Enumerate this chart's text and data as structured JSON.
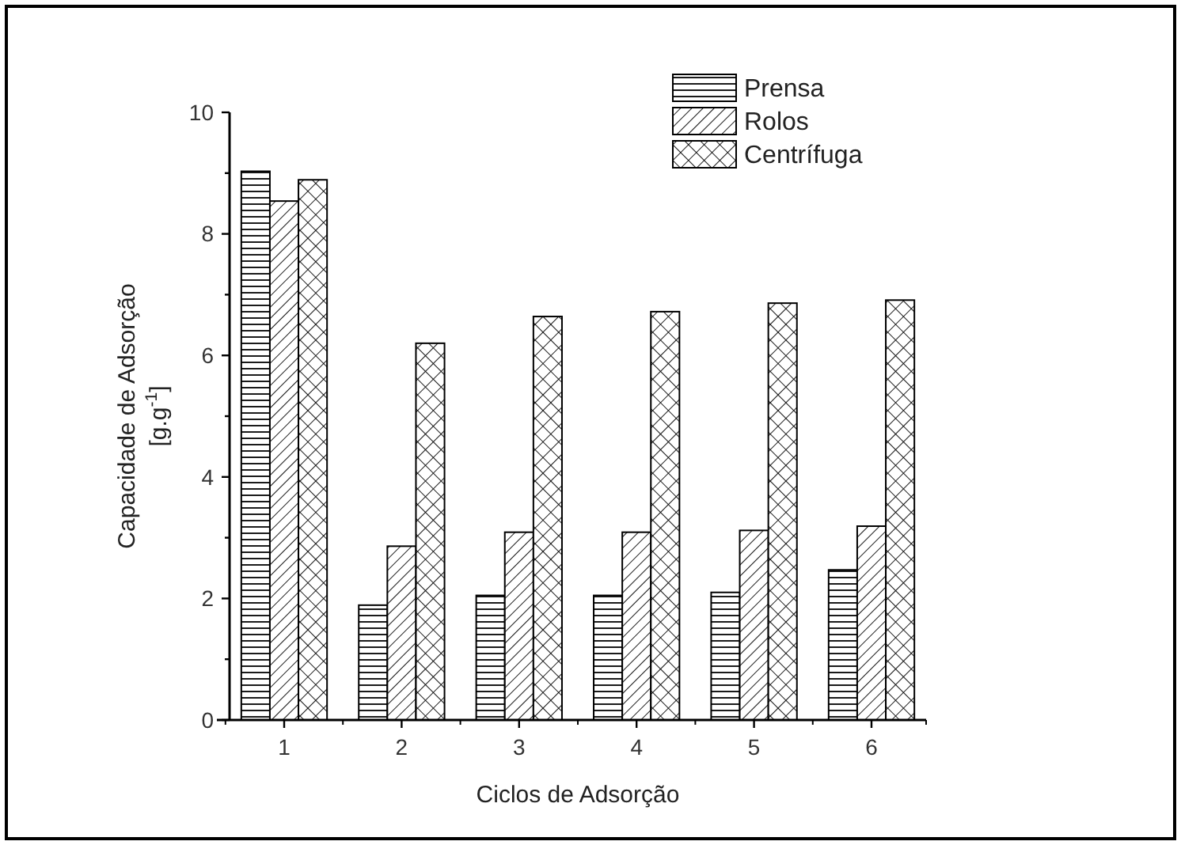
{
  "chart_data": {
    "type": "bar",
    "xlabel": "Ciclos de Adsorção",
    "ylabel": "Capacidade de Adsorção\n[g.g$^{-1}$]",
    "categories": [
      "1",
      "2",
      "3",
      "4",
      "5",
      "6"
    ],
    "series": [
      {
        "name": "Prensa",
        "color": "#000000",
        "values": [
          9.03,
          1.89,
          2.05,
          2.05,
          2.1,
          2.47
        ]
      },
      {
        "name": "Rolos",
        "color": "#000000",
        "values": [
          8.54,
          2.86,
          3.09,
          3.09,
          3.12,
          3.19
        ]
      },
      {
        "name": "Centrífuga",
        "color": "#000000",
        "values": [
          8.89,
          6.2,
          6.64,
          6.72,
          6.86,
          6.91
        ]
      }
    ],
    "ylim": [
      0,
      10
    ],
    "yticks": [
      0,
      {
        "value": 1,
        "label": null
      },
      2,
      {
        "value": 3,
        "label": null
      },
      4,
      {
        "value": 5,
        "label": null
      },
      6,
      {
        "value": 7,
        "label": null
      },
      8,
      {
        "value": 9,
        "label": null
      },
      10
    ],
    "grid": false,
    "legend": "top right"
  }
}
